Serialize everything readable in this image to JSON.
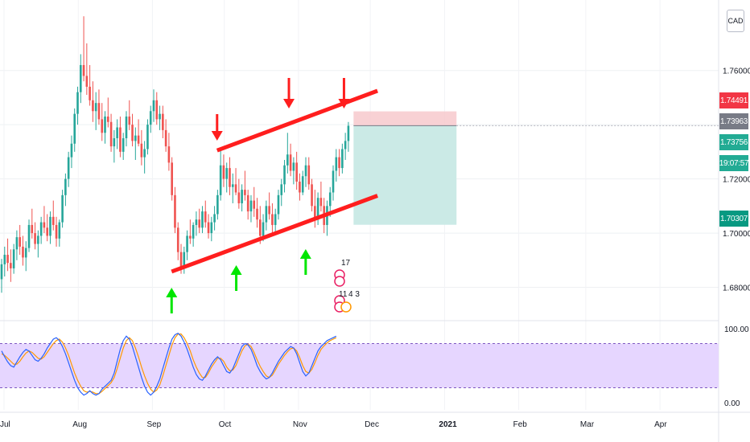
{
  "header": {
    "currency": "CAD"
  },
  "price_tags": [
    {
      "label": "1.74491",
      "color": "#f23645"
    },
    {
      "label": "1.73963",
      "color": "#787b86"
    },
    {
      "label": "1.73756",
      "color": "#22ab94"
    },
    {
      "label": "19:07:57",
      "color": "#22ab94"
    },
    {
      "label": "1.70307",
      "color": "#089981"
    }
  ],
  "chart_data": [
    {
      "type": "candlestick",
      "title": "",
      "x_tick_labels": [
        "Jul",
        "Aug",
        "Sep",
        "Oct",
        "Nov",
        "Dec",
        "2021",
        "Feb",
        "Mar",
        "Apr"
      ],
      "y_tick_labels": [
        "1.76000",
        "1.72000",
        "1.70000",
        "1.68000"
      ],
      "ylim": [
        1.668,
        1.786
      ],
      "colors": {
        "up": "#26a69a",
        "down": "#ef5350"
      },
      "trendlines": [
        {
          "name": "upper channel",
          "from": [
            "2020-09-28",
            1.7305
          ],
          "to": [
            "2020-12-04",
            1.7525
          ],
          "color": "#ff1e1e"
        },
        {
          "name": "lower channel",
          "from": [
            "2020-09-09",
            1.6858
          ],
          "to": [
            "2020-12-04",
            1.7138
          ],
          "color": "#ff1e1e"
        }
      ],
      "short_position": {
        "entry": 1.73963,
        "stop": 1.74491,
        "target": 1.70307,
        "from": "2020-11-24",
        "to": "2021-01-06",
        "colors": {
          "risk": "#f7c9cc",
          "reward": "#c8e9e5"
        }
      },
      "markers": [
        {
          "kind": "arrow-down",
          "date": "2020-09-28",
          "color": "#ff1e1e"
        },
        {
          "kind": "arrow-down",
          "date": "2020-10-28",
          "color": "#ff1e1e"
        },
        {
          "kind": "arrow-down",
          "date": "2020-11-20",
          "color": "#ff1e1e"
        },
        {
          "kind": "arrow-up",
          "date": "2020-09-09",
          "color": "#00e600"
        },
        {
          "kind": "arrow-up",
          "date": "2020-10-06",
          "color": "#00e600"
        },
        {
          "kind": "arrow-up",
          "date": "2020-11-04",
          "color": "#00e600"
        }
      ],
      "event_badges": [
        {
          "label": "17"
        },
        {
          "label": "11"
        },
        {
          "label": "4 3"
        }
      ],
      "series": [
        {
          "values": [
            [
              1.683,
              1.6905,
              1.678,
              1.6885
            ],
            [
              1.6885,
              1.695,
              1.684,
              1.692
            ],
            [
              1.692,
              1.698,
              1.686,
              1.689
            ],
            [
              1.689,
              1.694,
              1.682,
              1.687
            ],
            [
              1.687,
              1.696,
              1.685,
              1.694
            ],
            [
              1.694,
              1.701,
              1.69,
              1.6985
            ],
            [
              1.6985,
              1.703,
              1.692,
              1.695
            ],
            [
              1.695,
              1.699,
              1.688,
              1.691
            ],
            [
              1.691,
              1.697,
              1.686,
              1.6945
            ],
            [
              1.6945,
              1.705,
              1.693,
              1.703
            ],
            [
              1.703,
              1.709,
              1.698,
              1.7
            ],
            [
              1.7,
              1.704,
              1.694,
              1.696
            ],
            [
              1.696,
              1.701,
              1.691,
              1.699
            ],
            [
              1.699,
              1.706,
              1.696,
              1.704
            ],
            [
              1.704,
              1.71,
              1.7,
              1.702
            ],
            [
              1.702,
              1.707,
              1.697,
              1.699
            ],
            [
              1.699,
              1.708,
              1.696,
              1.706
            ],
            [
              1.706,
              1.712,
              1.701,
              1.703
            ],
            [
              1.703,
              1.706,
              1.695,
              1.698
            ],
            [
              1.698,
              1.705,
              1.695,
              1.704
            ],
            [
              1.704,
              1.716,
              1.702,
              1.714
            ],
            [
              1.714,
              1.722,
              1.71,
              1.72
            ],
            [
              1.72,
              1.73,
              1.717,
              1.728
            ],
            [
              1.728,
              1.736,
              1.724,
              1.733
            ],
            [
              1.733,
              1.746,
              1.73,
              1.744
            ],
            [
              1.744,
              1.754,
              1.74,
              1.752
            ],
            [
              1.752,
              1.766,
              1.748,
              1.762
            ],
            [
              1.762,
              1.78,
              1.756,
              1.758
            ],
            [
              1.758,
              1.77,
              1.751,
              1.754
            ],
            [
              1.754,
              1.762,
              1.747,
              1.749
            ],
            [
              1.749,
              1.756,
              1.741,
              1.745
            ],
            [
              1.745,
              1.752,
              1.738,
              1.748
            ],
            [
              1.748,
              1.753,
              1.74,
              1.742
            ],
            [
              1.742,
              1.748,
              1.734,
              1.737
            ],
            [
              1.737,
              1.745,
              1.733,
              1.743
            ],
            [
              1.743,
              1.75,
              1.739,
              1.741
            ],
            [
              1.741,
              1.744,
              1.73,
              1.732
            ],
            [
              1.732,
              1.738,
              1.726,
              1.735
            ],
            [
              1.735,
              1.742,
              1.731,
              1.739
            ],
            [
              1.739,
              1.743,
              1.728,
              1.73
            ],
            [
              1.73,
              1.737,
              1.727,
              1.735
            ],
            [
              1.735,
              1.745,
              1.732,
              1.743
            ],
            [
              1.743,
              1.749,
              1.738,
              1.74
            ],
            [
              1.74,
              1.744,
              1.732,
              1.734
            ],
            [
              1.734,
              1.739,
              1.727,
              1.736
            ],
            [
              1.736,
              1.742,
              1.732,
              1.733
            ],
            [
              1.733,
              1.738,
              1.725,
              1.728
            ],
            [
              1.728,
              1.734,
              1.722,
              1.731
            ],
            [
              1.731,
              1.742,
              1.729,
              1.74
            ],
            [
              1.74,
              1.747,
              1.737,
              1.745
            ],
            [
              1.745,
              1.753,
              1.741,
              1.749
            ],
            [
              1.749,
              1.752,
              1.74,
              1.742
            ],
            [
              1.742,
              1.747,
              1.738,
              1.744
            ],
            [
              1.744,
              1.747,
              1.735,
              1.738
            ],
            [
              1.738,
              1.742,
              1.73,
              1.732
            ],
            [
              1.732,
              1.737,
              1.723,
              1.726
            ],
            [
              1.726,
              1.728,
              1.712,
              1.714
            ],
            [
              1.714,
              1.717,
              1.7,
              1.702
            ],
            [
              1.702,
              1.704,
              1.69,
              1.693
            ],
            [
              1.693,
              1.696,
              1.685,
              1.687
            ],
            [
              1.687,
              1.695,
              1.685,
              1.693
            ],
            [
              1.693,
              1.701,
              1.69,
              1.699
            ],
            [
              1.699,
              1.705,
              1.696,
              1.698
            ],
            [
              1.698,
              1.704,
              1.695,
              1.703
            ],
            [
              1.703,
              1.708,
              1.699,
              1.705
            ],
            [
              1.705,
              1.709,
              1.7,
              1.702
            ],
            [
              1.702,
              1.71,
              1.7,
              1.708
            ],
            [
              1.708,
              1.712,
              1.702,
              1.704
            ],
            [
              1.704,
              1.707,
              1.698,
              1.7
            ],
            [
              1.7,
              1.706,
              1.697,
              1.704
            ],
            [
              1.704,
              1.71,
              1.701,
              1.707
            ],
            [
              1.707,
              1.716,
              1.705,
              1.714
            ],
            [
              1.714,
              1.731,
              1.712,
              1.725
            ],
            [
              1.725,
              1.729,
              1.717,
              1.72
            ],
            [
              1.72,
              1.726,
              1.715,
              1.724
            ],
            [
              1.724,
              1.728,
              1.714,
              1.717
            ],
            [
              1.717,
              1.722,
              1.711,
              1.718
            ],
            [
              1.718,
              1.724,
              1.714,
              1.715
            ],
            [
              1.715,
              1.72,
              1.709,
              1.711
            ],
            [
              1.711,
              1.718,
              1.708,
              1.716
            ],
            [
              1.716,
              1.723,
              1.712,
              1.714
            ],
            [
              1.714,
              1.716,
              1.705,
              1.708
            ],
            [
              1.708,
              1.714,
              1.704,
              1.712
            ],
            [
              1.712,
              1.717,
              1.706,
              1.709
            ],
            [
              1.709,
              1.713,
              1.702,
              1.705
            ],
            [
              1.705,
              1.71,
              1.696,
              1.699
            ],
            [
              1.699,
              1.707,
              1.697,
              1.704
            ],
            [
              1.704,
              1.712,
              1.701,
              1.71
            ],
            [
              1.71,
              1.715,
              1.705,
              1.707
            ],
            [
              1.707,
              1.711,
              1.7,
              1.703
            ],
            [
              1.703,
              1.709,
              1.7,
              1.707
            ],
            [
              1.707,
              1.716,
              1.705,
              1.714
            ],
            [
              1.714,
              1.72,
              1.71,
              1.718
            ],
            [
              1.718,
              1.727,
              1.715,
              1.725
            ],
            [
              1.725,
              1.737,
              1.722,
              1.729
            ],
            [
              1.729,
              1.733,
              1.721,
              1.723
            ],
            [
              1.723,
              1.728,
              1.718,
              1.726
            ],
            [
              1.726,
              1.73,
              1.716,
              1.719
            ],
            [
              1.719,
              1.722,
              1.712,
              1.715
            ],
            [
              1.715,
              1.723,
              1.714,
              1.721
            ],
            [
              1.721,
              1.728,
              1.717,
              1.725
            ],
            [
              1.725,
              1.728,
              1.716,
              1.718
            ],
            [
              1.718,
              1.72,
              1.708,
              1.71
            ],
            [
              1.71,
              1.716,
              1.702,
              1.705
            ],
            [
              1.705,
              1.715,
              1.703,
              1.713
            ],
            [
              1.713,
              1.719,
              1.708,
              1.71
            ],
            [
              1.71,
              1.713,
              1.7,
              1.703
            ],
            [
              1.703,
              1.712,
              1.699,
              1.71
            ],
            [
              1.71,
              1.717,
              1.706,
              1.715
            ],
            [
              1.715,
              1.725,
              1.712,
              1.723
            ],
            [
              1.723,
              1.731,
              1.719,
              1.728
            ],
            [
              1.728,
              1.731,
              1.721,
              1.724
            ],
            [
              1.724,
              1.733,
              1.722,
              1.731
            ],
            [
              1.731,
              1.737,
              1.727,
              1.734
            ],
            [
              1.734,
              1.741,
              1.73,
              1.7396
            ]
          ]
        }
      ]
    },
    {
      "type": "line",
      "title": "",
      "y_tick_labels": [
        "100.00",
        "0.00"
      ],
      "ylim": [
        -10,
        110
      ],
      "bands": {
        "upper": 80,
        "lower": 20,
        "fill": "#e6d6ff"
      },
      "series": [
        {
          "color": "#2962ff",
          "values": [
            70,
            62,
            55,
            50,
            48,
            55,
            62,
            68,
            72,
            70,
            64,
            58,
            56,
            60,
            66,
            74,
            80,
            86,
            88,
            84,
            76,
            66,
            54,
            42,
            30,
            20,
            14,
            10,
            12,
            16,
            12,
            10,
            12,
            18,
            22,
            26,
            30,
            40,
            56,
            72,
            84,
            90,
            86,
            76,
            62,
            48,
            34,
            22,
            14,
            10,
            14,
            22,
            32,
            46,
            60,
            74,
            86,
            92,
            94,
            90,
            82,
            72,
            60,
            48,
            38,
            32,
            30,
            36,
            44,
            52,
            58,
            62,
            58,
            50,
            42,
            40,
            46,
            56,
            66,
            76,
            80,
            78,
            72,
            62,
            50,
            42,
            36,
            32,
            34,
            40,
            48,
            56,
            62,
            68,
            72,
            76,
            74,
            66,
            54,
            42,
            36,
            40,
            50,
            60,
            70,
            76,
            80,
            84,
            86,
            88,
            90
          ]
        },
        {
          "color": "#ff9800",
          "values": [
            66,
            64,
            60,
            56,
            52,
            52,
            56,
            62,
            67,
            70,
            68,
            64,
            60,
            59,
            62,
            68,
            74,
            80,
            84,
            86,
            82,
            74,
            64,
            52,
            40,
            30,
            22,
            16,
            14,
            15,
            14,
            12,
            12,
            15,
            19,
            23,
            27,
            34,
            46,
            60,
            74,
            84,
            88,
            84,
            74,
            62,
            48,
            36,
            26,
            18,
            14,
            17,
            24,
            36,
            50,
            64,
            78,
            88,
            93,
            93,
            88,
            80,
            70,
            58,
            48,
            40,
            34,
            34,
            40,
            48,
            54,
            60,
            60,
            56,
            48,
            43,
            44,
            50,
            60,
            70,
            77,
            79,
            76,
            68,
            58,
            49,
            42,
            36,
            34,
            37,
            44,
            52,
            58,
            64,
            69,
            73,
            74,
            70,
            61,
            50,
            42,
            40,
            45,
            54,
            64,
            72,
            77,
            81,
            84,
            86,
            88
          ]
        }
      ]
    }
  ]
}
